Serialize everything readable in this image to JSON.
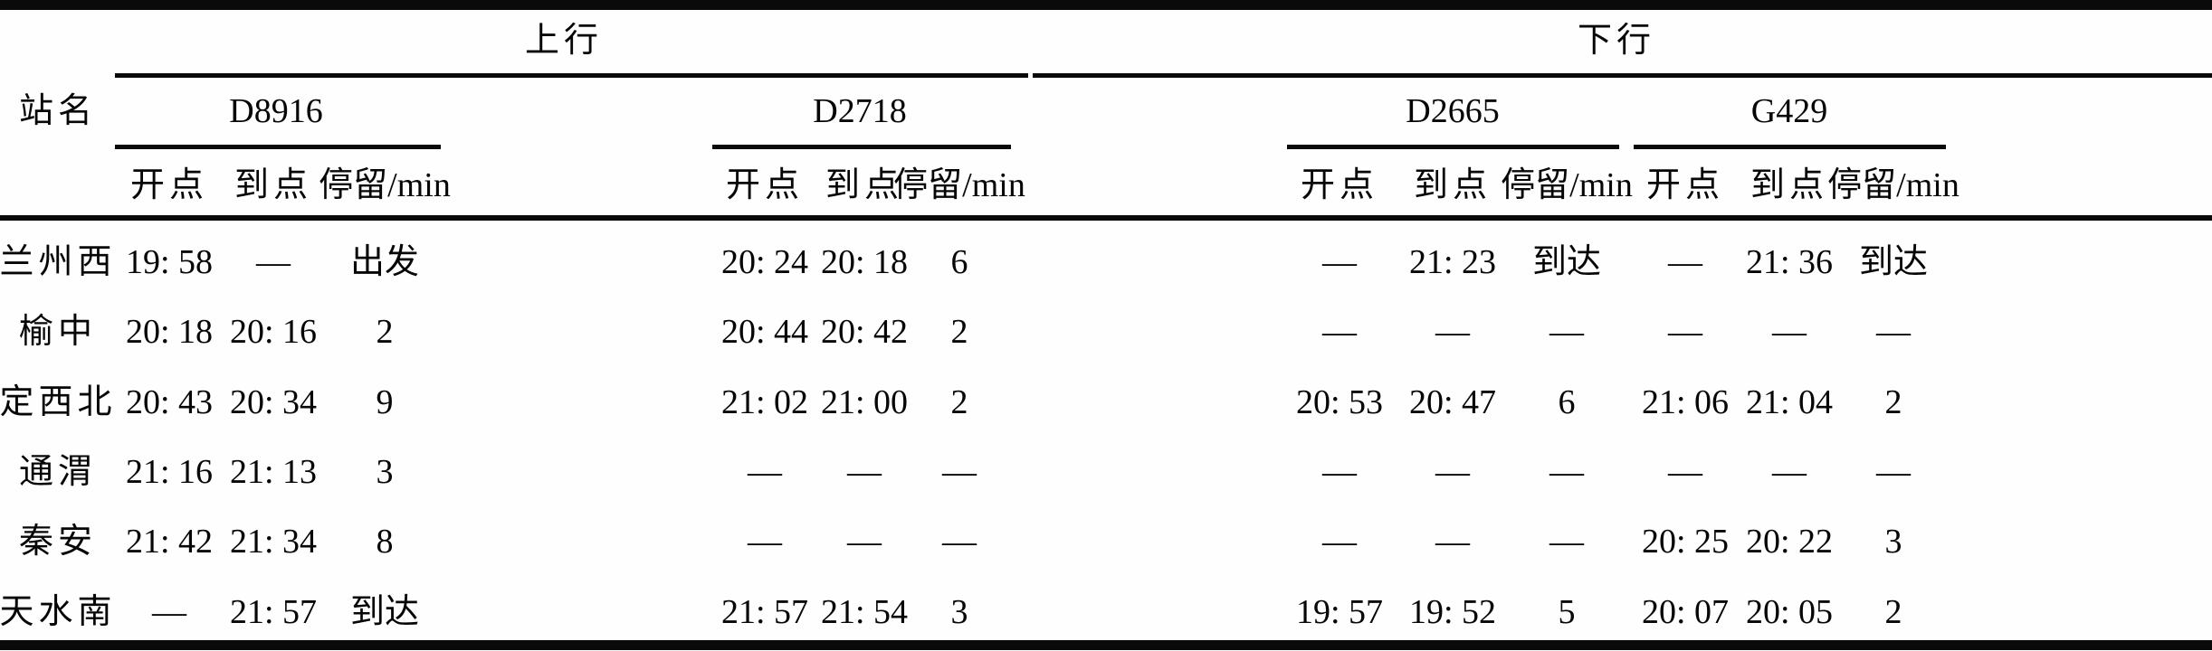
{
  "table": {
    "header": {
      "station": "站名",
      "up": "上行",
      "down": "下行"
    },
    "trains": [
      {
        "code": "D8916",
        "direction": "up"
      },
      {
        "code": "D2718",
        "direction": "up"
      },
      {
        "code": "D2665",
        "direction": "down"
      },
      {
        "code": "G429",
        "direction": "down"
      }
    ],
    "sub_headers": {
      "depart": "开点",
      "arrive": "到点",
      "dwell": "停留/min"
    },
    "rows": [
      {
        "station": "兰州西",
        "cells": [
          "19: 58",
          "—",
          "出发",
          "20: 24",
          "20: 18",
          "6",
          "—",
          "21: 23",
          "到达",
          "—",
          "21: 36",
          "到达"
        ]
      },
      {
        "station": "榆中",
        "cells": [
          "20: 18",
          "20: 16",
          "2",
          "20: 44",
          "20: 42",
          "2",
          "—",
          "—",
          "—",
          "—",
          "—",
          "—"
        ]
      },
      {
        "station": "定西北",
        "cells": [
          "20: 43",
          "20: 34",
          "9",
          "21: 02",
          "21: 00",
          "2",
          "20: 53",
          "20: 47",
          "6",
          "21: 06",
          "21: 04",
          "2"
        ]
      },
      {
        "station": "通渭",
        "cells": [
          "21: 16",
          "21: 13",
          "3",
          "—",
          "—",
          "—",
          "—",
          "—",
          "—",
          "—",
          "—",
          "—"
        ]
      },
      {
        "station": "秦安",
        "cells": [
          "21: 42",
          "21: 34",
          "8",
          "—",
          "—",
          "—",
          "—",
          "—",
          "—",
          "20: 25",
          "20: 22",
          "3"
        ]
      },
      {
        "station": "天水南",
        "cells": [
          "—",
          "21: 57",
          "到达",
          "21: 57",
          "21: 54",
          "3",
          "19: 57",
          "19: 52",
          "5",
          "20: 07",
          "20: 05",
          "2"
        ]
      }
    ],
    "colors": {
      "ink": "#0a0a0a",
      "paper": "#fefefe"
    }
  }
}
